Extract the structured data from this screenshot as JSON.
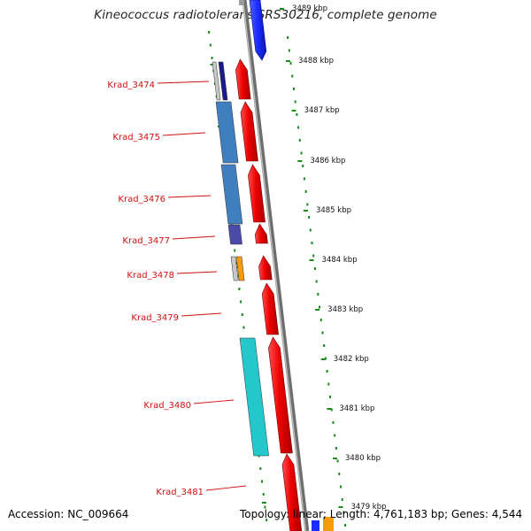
{
  "title": "Kineococcus radiotolerans SRS30216, complete genome",
  "footer": {
    "accession": "Accession: NC_009664",
    "topology": "Topology: linear; Length: 4,761,183 bp; Genes: 4,544"
  },
  "colors": {
    "forward_gene": "#ee0000",
    "backbone": "#909090",
    "tick_dots": "#1a8a1a",
    "label_red": "#d11010",
    "blue_top": "#1a2cff"
  },
  "scale": {
    "unit": "kbp",
    "ticks": [
      {
        "label": "3489 kbp",
        "faded": true
      },
      {
        "label": "3488 kbp"
      },
      {
        "label": "3487 kbp"
      },
      {
        "label": "3486 kbp"
      },
      {
        "label": "3485 kbp"
      },
      {
        "label": "3484 kbp"
      },
      {
        "label": "3483 kbp"
      },
      {
        "label": "3482 kbp"
      },
      {
        "label": "3481 kbp"
      },
      {
        "label": "3480 kbp"
      },
      {
        "label": "3479 kbp"
      }
    ]
  },
  "genes": [
    {
      "name": "Krad_3474",
      "domains": [
        "#c8c8c8",
        "#1a1a8a"
      ]
    },
    {
      "name": "Krad_3475",
      "domains": [
        "#3f7fbf"
      ]
    },
    {
      "name": "Krad_3476",
      "domains": [
        "#3f7fbf"
      ]
    },
    {
      "name": "Krad_3477",
      "domains": [
        "#4a4aa8"
      ]
    },
    {
      "name": "Krad_3478",
      "domains": [
        "#c8c8c8",
        "#f59a0a"
      ]
    },
    {
      "name": "Krad_3479",
      "domains": []
    },
    {
      "name": "Krad_3480",
      "domains": [
        "#22c8cc"
      ]
    },
    {
      "name": "Krad_3481",
      "domains": []
    }
  ]
}
